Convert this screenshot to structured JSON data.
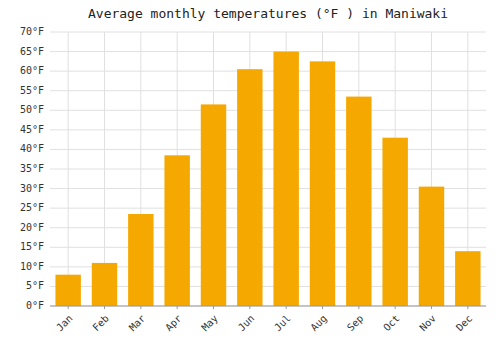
{
  "chart_data": {
    "type": "bar",
    "title": "Average monthly temperatures (°F ) in Maniwaki",
    "categories": [
      "Jan",
      "Feb",
      "Mar",
      "Apr",
      "May",
      "Jun",
      "Jul",
      "Aug",
      "Sep",
      "Oct",
      "Nov",
      "Dec"
    ],
    "values": [
      8,
      11,
      23.5,
      38.5,
      51.5,
      60.5,
      65,
      62.5,
      53.5,
      43,
      30.5,
      14
    ],
    "color": "#F5A800",
    "ylim": [
      0,
      70
    ],
    "yticks": [
      {
        "value": 0,
        "label": "0°F"
      },
      {
        "value": 5,
        "label": "5°F"
      },
      {
        "value": 10,
        "label": "10°F"
      },
      {
        "value": 15,
        "label": "15°F"
      },
      {
        "value": 20,
        "label": "20°F"
      },
      {
        "value": 25,
        "label": "25°F"
      },
      {
        "value": 30,
        "label": "30°F"
      },
      {
        "value": 35,
        "label": "35°F"
      },
      {
        "value": 40,
        "label": "40°F"
      },
      {
        "value": 45,
        "label": "45°F"
      },
      {
        "value": 50,
        "label": "50°F"
      },
      {
        "value": 55,
        "label": "55°F"
      },
      {
        "value": 60,
        "label": "60°F"
      },
      {
        "value": 65,
        "label": "65°F"
      },
      {
        "value": 70,
        "label": "70°F"
      }
    ],
    "grid": true
  }
}
